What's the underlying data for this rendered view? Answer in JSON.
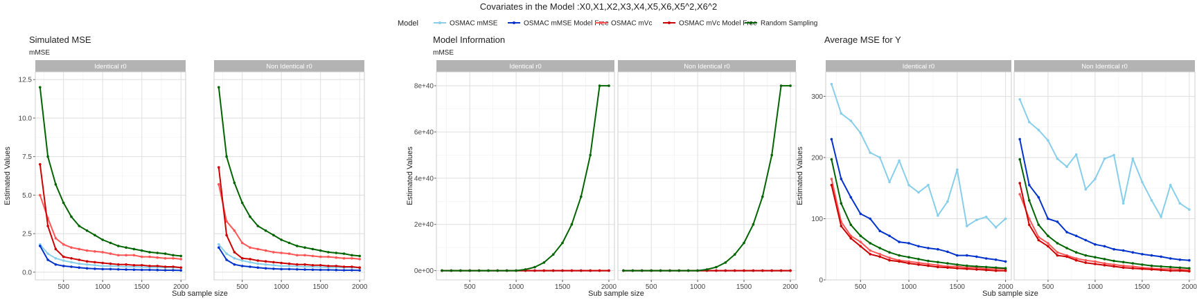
{
  "figure": {
    "title": "Covariates in the Model :X0,X1,X2,X3,X4,X5,X6,X5^2,X6^2",
    "legend_title": "Model",
    "legend_placement": "top"
  },
  "series_styles": [
    {
      "name": "OSMAC mMSE",
      "color": "#87CEEB"
    },
    {
      "name": "OSMAC mMSE Model Free",
      "color": "#0033CC"
    },
    {
      "name": "OSMAC mVc",
      "color": "#FF5555"
    },
    {
      "name": "OSMAC mVc Model Free",
      "color": "#CC0000"
    },
    {
      "name": "Random Sampling",
      "color": "#006400"
    }
  ],
  "chart_data": [
    {
      "type": "line",
      "title": "Simulated MSE",
      "subtitle": "mMSE",
      "xlabel": "Sub sample size",
      "ylabel": "Estimated Values",
      "x": [
        200,
        300,
        400,
        500,
        600,
        700,
        800,
        900,
        1000,
        1100,
        1200,
        1300,
        1400,
        1500,
        1600,
        1700,
        1800,
        1900,
        2000
      ],
      "xlim": [
        140,
        2060
      ],
      "xticks": [
        500,
        1000,
        1500,
        2000
      ],
      "ylim": [
        -0.5,
        13.0
      ],
      "yticks": [
        0.0,
        2.5,
        5.0,
        7.5,
        10.0,
        12.5
      ],
      "ytick_labels": [
        "0.0",
        "2.5",
        "5.0",
        "7.5",
        "10.0",
        "12.5"
      ],
      "grid": true,
      "facets": [
        {
          "label": "Identical r0",
          "series": [
            {
              "name": "OSMAC mMSE",
              "values": [
                1.8,
                1.2,
                0.9,
                0.75,
                0.65,
                0.55,
                0.5,
                0.45,
                0.4,
                0.4,
                0.38,
                0.35,
                0.35,
                0.33,
                0.32,
                0.32,
                0.3,
                0.3,
                0.3
              ]
            },
            {
              "name": "OSMAC mMSE Model Free",
              "values": [
                1.7,
                0.8,
                0.5,
                0.4,
                0.35,
                0.3,
                0.25,
                0.22,
                0.2,
                0.2,
                0.18,
                0.17,
                0.16,
                0.15,
                0.15,
                0.14,
                0.13,
                0.13,
                0.12
              ]
            },
            {
              "name": "OSMAC mVc",
              "values": [
                5.0,
                3.5,
                2.2,
                1.8,
                1.6,
                1.5,
                1.4,
                1.35,
                1.3,
                1.2,
                1.1,
                1.1,
                1.1,
                1.0,
                1.0,
                0.95,
                0.9,
                0.9,
                0.85
              ]
            },
            {
              "name": "OSMAC mVc Model Free",
              "values": [
                7.0,
                3.0,
                1.5,
                1.0,
                0.9,
                0.8,
                0.7,
                0.65,
                0.6,
                0.55,
                0.5,
                0.5,
                0.45,
                0.45,
                0.4,
                0.4,
                0.35,
                0.35,
                0.3
              ]
            },
            {
              "name": "Random Sampling",
              "values": [
                12.0,
                7.5,
                5.7,
                4.5,
                3.6,
                3.0,
                2.7,
                2.4,
                2.1,
                1.9,
                1.7,
                1.6,
                1.5,
                1.4,
                1.3,
                1.25,
                1.2,
                1.1,
                1.05
              ]
            }
          ]
        },
        {
          "label": "Non Identical r0",
          "series": [
            {
              "name": "OSMAC mMSE",
              "values": [
                1.8,
                1.2,
                0.9,
                0.75,
                0.65,
                0.55,
                0.5,
                0.45,
                0.4,
                0.4,
                0.38,
                0.35,
                0.35,
                0.33,
                0.32,
                0.32,
                0.3,
                0.3,
                0.3
              ]
            },
            {
              "name": "OSMAC mMSE Model Free",
              "values": [
                1.6,
                0.8,
                0.5,
                0.4,
                0.35,
                0.3,
                0.25,
                0.22,
                0.2,
                0.2,
                0.18,
                0.17,
                0.16,
                0.15,
                0.15,
                0.14,
                0.13,
                0.13,
                0.12
              ]
            },
            {
              "name": "OSMAC mVc",
              "values": [
                5.7,
                3.3,
                2.7,
                1.9,
                1.6,
                1.5,
                1.4,
                1.3,
                1.25,
                1.2,
                1.1,
                1.1,
                1.05,
                1.0,
                1.0,
                0.95,
                0.9,
                0.9,
                0.85
              ]
            },
            {
              "name": "OSMAC mVc Model Free",
              "values": [
                6.8,
                2.4,
                1.3,
                0.9,
                0.85,
                0.75,
                0.7,
                0.65,
                0.6,
                0.55,
                0.5,
                0.5,
                0.45,
                0.45,
                0.4,
                0.4,
                0.35,
                0.35,
                0.3
              ]
            },
            {
              "name": "Random Sampling",
              "values": [
                12.0,
                7.5,
                5.8,
                4.5,
                3.6,
                3.0,
                2.7,
                2.4,
                2.1,
                1.9,
                1.7,
                1.6,
                1.5,
                1.4,
                1.3,
                1.25,
                1.2,
                1.1,
                1.05
              ]
            }
          ]
        }
      ]
    },
    {
      "type": "line",
      "title": "Model Information",
      "subtitle": "mMSE",
      "xlabel": "Sub sample size",
      "ylabel": "Estimated Values",
      "x": [
        200,
        300,
        400,
        500,
        600,
        700,
        800,
        900,
        1000,
        1100,
        1200,
        1300,
        1400,
        1500,
        1600,
        1700,
        1800,
        1900,
        2000
      ],
      "xlim": [
        140,
        2060
      ],
      "xticks": [
        500,
        1000,
        1500,
        2000
      ],
      "ylim": [
        -4e+39,
        8.6e+40
      ],
      "yticks": [
        0,
        2e+40,
        4e+40,
        6e+40,
        8e+40
      ],
      "ytick_labels": [
        "0e+00",
        "2e+40",
        "4e+40",
        "6e+40",
        "8e+40"
      ],
      "grid": true,
      "facets": [
        {
          "label": "Identical r0",
          "series": [
            {
              "name": "OSMAC mMSE",
              "values": [
                0,
                0,
                0,
                0,
                0,
                0,
                0,
                0,
                0,
                0,
                0,
                0,
                0,
                0,
                0,
                0,
                0,
                0,
                0
              ]
            },
            {
              "name": "OSMAC mMSE Model Free",
              "values": [
                0,
                0,
                0,
                0,
                0,
                0,
                0,
                0,
                0,
                0,
                0,
                0,
                0,
                0,
                0,
                0,
                0,
                0,
                0
              ]
            },
            {
              "name": "OSMAC mVc",
              "values": [
                0,
                0,
                0,
                0,
                0,
                0,
                0,
                0,
                0,
                0,
                0,
                0,
                0,
                0,
                0,
                0,
                0,
                0,
                0
              ]
            },
            {
              "name": "OSMAC mVc Model Free",
              "values": [
                0,
                0,
                0,
                0,
                0,
                0,
                0,
                0,
                0,
                0,
                0,
                0,
                0,
                0,
                0,
                0,
                0,
                0,
                0
              ]
            },
            {
              "name": "Random Sampling",
              "values": [
                0,
                0,
                0,
                0,
                0,
                0,
                0,
                0,
                0,
                5e+38,
                1.5e+39,
                3.5e+39,
                7e+39,
                1.2e+40,
                2e+40,
                3.2e+40,
                5e+40,
                8e+40,
                8e+40
              ]
            }
          ]
        },
        {
          "label": "Non Identical r0",
          "series": [
            {
              "name": "OSMAC mMSE",
              "values": [
                0,
                0,
                0,
                0,
                0,
                0,
                0,
                0,
                0,
                0,
                0,
                0,
                0,
                0,
                0,
                0,
                0,
                0,
                0
              ]
            },
            {
              "name": "OSMAC mMSE Model Free",
              "values": [
                0,
                0,
                0,
                0,
                0,
                0,
                0,
                0,
                0,
                0,
                0,
                0,
                0,
                0,
                0,
                0,
                0,
                0,
                0
              ]
            },
            {
              "name": "OSMAC mVc",
              "values": [
                0,
                0,
                0,
                0,
                0,
                0,
                0,
                0,
                0,
                0,
                0,
                0,
                0,
                0,
                0,
                0,
                0,
                0,
                0
              ]
            },
            {
              "name": "OSMAC mVc Model Free",
              "values": [
                0,
                0,
                0,
                0,
                0,
                0,
                0,
                0,
                0,
                0,
                0,
                0,
                0,
                0,
                0,
                0,
                0,
                0,
                0
              ]
            },
            {
              "name": "Random Sampling",
              "values": [
                0,
                0,
                0,
                0,
                0,
                0,
                0,
                0,
                0,
                5e+38,
                1.5e+39,
                3.5e+39,
                7e+39,
                1.2e+40,
                2e+40,
                3.2e+40,
                5e+40,
                8e+40,
                8e+40
              ]
            }
          ]
        }
      ]
    },
    {
      "type": "line",
      "title": "Average MSE for Y",
      "subtitle": "",
      "xlabel": "Sub sample size",
      "ylabel": "Estimated Values",
      "x": [
        200,
        300,
        400,
        500,
        600,
        700,
        800,
        900,
        1000,
        1100,
        1200,
        1300,
        1400,
        1500,
        1600,
        1700,
        1800,
        1900,
        2000
      ],
      "xlim": [
        140,
        2060
      ],
      "xticks": [
        500,
        1000,
        1500,
        2000
      ],
      "ylim": [
        0,
        340
      ],
      "yticks": [
        0,
        100,
        200,
        300
      ],
      "ytick_labels": [
        "0",
        "100",
        "200",
        "300"
      ],
      "grid": true,
      "facets": [
        {
          "label": "Identical r0",
          "series": [
            {
              "name": "OSMAC mMSE",
              "values": [
                320,
                272,
                260,
                240,
                208,
                200,
                160,
                195,
                155,
                143,
                155,
                105,
                128,
                180,
                88,
                98,
                103,
                86,
                100
              ]
            },
            {
              "name": "OSMAC mMSE Model Free",
              "values": [
                230,
                165,
                135,
                108,
                100,
                80,
                72,
                62,
                60,
                55,
                52,
                50,
                46,
                40,
                40,
                38,
                35,
                33,
                30
              ]
            },
            {
              "name": "OSMAC mVc",
              "values": [
                165,
                95,
                72,
                62,
                48,
                42,
                36,
                32,
                30,
                28,
                26,
                24,
                22,
                22,
                20,
                20,
                18,
                18,
                18
              ]
            },
            {
              "name": "OSMAC mVc Model Free",
              "values": [
                155,
                88,
                68,
                55,
                42,
                38,
                32,
                30,
                27,
                25,
                23,
                21,
                20,
                19,
                18,
                17,
                16,
                15,
                15
              ]
            },
            {
              "name": "Random Sampling",
              "values": [
                197,
                125,
                90,
                72,
                60,
                52,
                45,
                40,
                37,
                34,
                31,
                29,
                27,
                25,
                23,
                22,
                21,
                20,
                19
              ]
            }
          ]
        },
        {
          "label": "Non Identical r0",
          "series": [
            {
              "name": "OSMAC mMSE",
              "values": [
                295,
                258,
                245,
                228,
                198,
                185,
                205,
                148,
                165,
                198,
                204,
                125,
                198,
                160,
                130,
                103,
                155,
                125,
                115
              ]
            },
            {
              "name": "OSMAC mMSE Model Free",
              "values": [
                230,
                155,
                135,
                100,
                95,
                78,
                72,
                65,
                58,
                55,
                50,
                48,
                45,
                42,
                40,
                38,
                35,
                33,
                32
              ]
            },
            {
              "name": "OSMAC mVc",
              "values": [
                140,
                100,
                70,
                60,
                45,
                40,
                35,
                32,
                30,
                27,
                25,
                23,
                22,
                20,
                19,
                18,
                18,
                17,
                16
              ]
            },
            {
              "name": "OSMAC mVc Model Free",
              "values": [
                158,
                90,
                65,
                55,
                40,
                38,
                32,
                28,
                26,
                24,
                22,
                20,
                19,
                18,
                17,
                16,
                15,
                15,
                14
              ]
            },
            {
              "name": "Random Sampling",
              "values": [
                197,
                130,
                90,
                72,
                60,
                52,
                45,
                40,
                37,
                34,
                31,
                29,
                27,
                25,
                23,
                22,
                21,
                20,
                19
              ]
            }
          ]
        }
      ]
    }
  ]
}
